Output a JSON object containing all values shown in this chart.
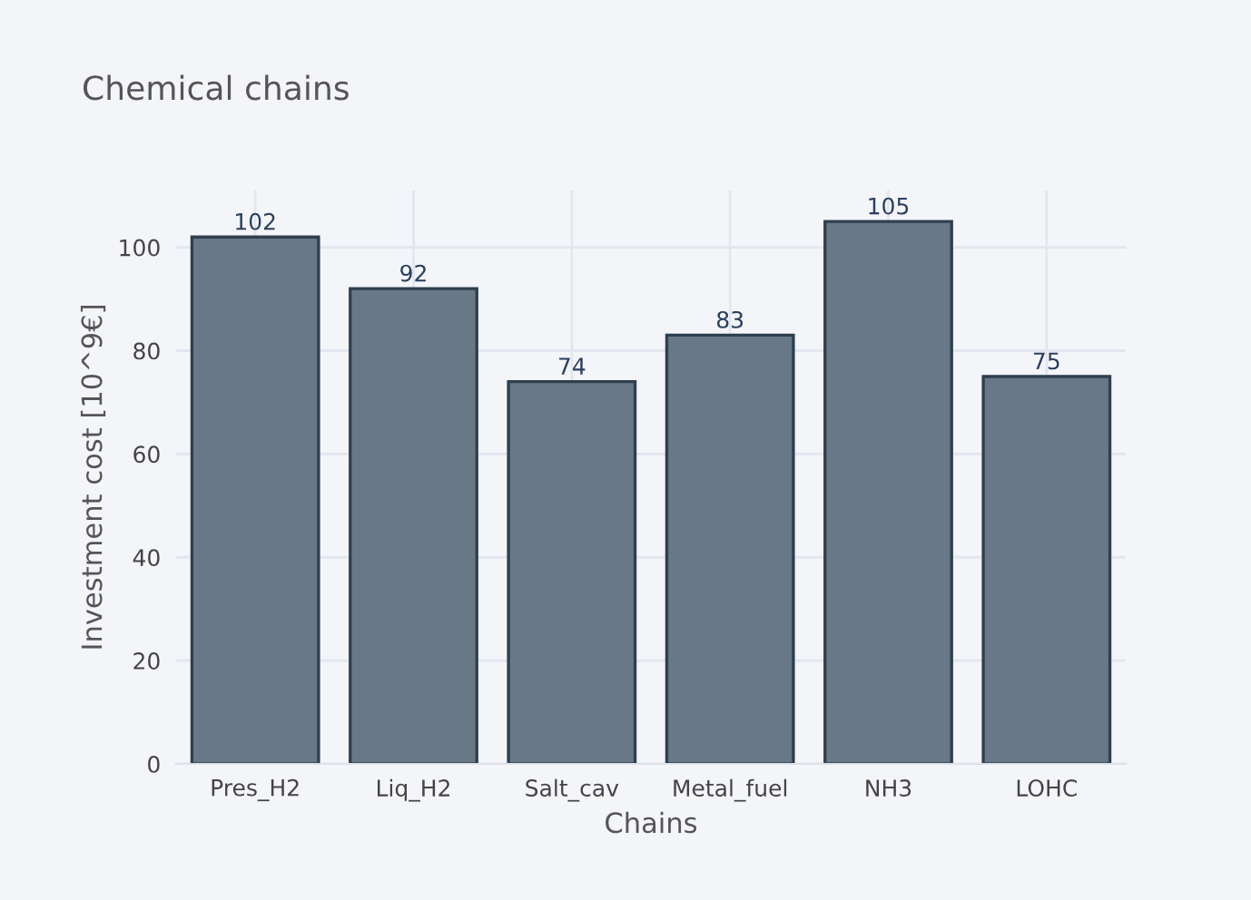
{
  "chart_data": {
    "type": "bar",
    "title": "Chemical chains",
    "xlabel": "Chains",
    "ylabel": "Investment cost [10^9€]",
    "categories": [
      "Pres_H2",
      "Liq_H2",
      "Salt_cav",
      "Metal_fuel",
      "NH3",
      "LOHC"
    ],
    "values": [
      102,
      92,
      74,
      83,
      105,
      75
    ],
    "color": "#687886",
    "ylim": [
      0,
      111
    ],
    "yticks": [
      0,
      20,
      40,
      60,
      80,
      100
    ],
    "grid": true,
    "data_labels": true
  }
}
